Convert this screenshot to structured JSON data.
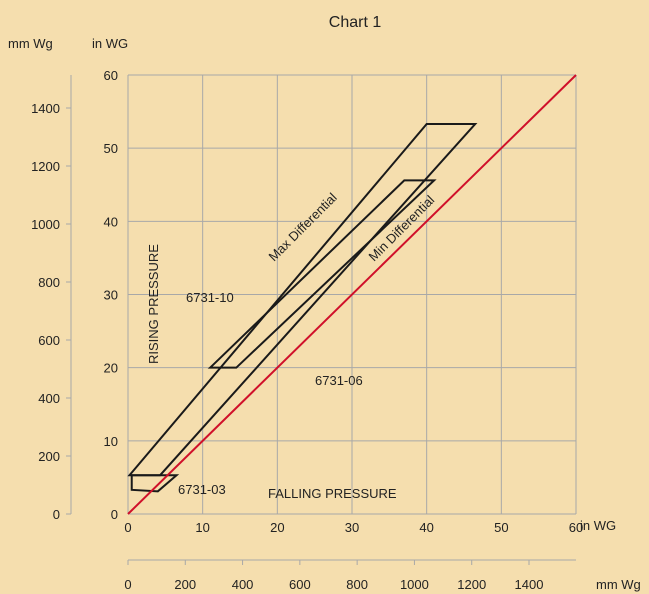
{
  "chart_data": {
    "type": "line",
    "title": "Chart 1",
    "x_axis": {
      "unit_primary": "in WG",
      "ticks_primary": [
        "0",
        "10",
        "20",
        "30",
        "40",
        "50",
        "60"
      ],
      "range": [
        0,
        60
      ],
      "unit_secondary": "mm Wg",
      "ticks_secondary": [
        "0",
        "200",
        "400",
        "600",
        "800",
        "1000",
        "1200",
        "1400"
      ]
    },
    "y_axis": {
      "unit_primary": "in WG",
      "ticks_primary": [
        "0",
        "10",
        "20",
        "30",
        "40",
        "50",
        "60"
      ],
      "range": [
        0,
        60
      ],
      "unit_secondary": "mm Wg",
      "ticks_secondary": [
        "0",
        "200",
        "400",
        "600",
        "800",
        "1000",
        "1200",
        "1400"
      ]
    },
    "grid": true,
    "colors": {
      "background": "#f5deae",
      "grid": "#a8a8a8",
      "outline": "#1a1a1a",
      "diagonal": "#d0102a"
    },
    "series": [
      {
        "name": "6731-03",
        "shape": "closed",
        "points": [
          [
            0.5,
            5.3
          ],
          [
            6.5,
            5.3
          ],
          [
            4.0,
            3.1
          ],
          [
            0.5,
            3.3
          ]
        ]
      },
      {
        "name": "6731-06",
        "shape": "closed",
        "points": [
          [
            11.0,
            20.0
          ],
          [
            37.0,
            45.6
          ],
          [
            41.0,
            45.6
          ],
          [
            14.5,
            20.0
          ]
        ]
      },
      {
        "name": "6731-10",
        "shape": "closed",
        "points": [
          [
            0.2,
            5.3
          ],
          [
            40.0,
            53.3
          ],
          [
            46.5,
            53.3
          ],
          [
            4.3,
            5.3
          ]
        ]
      },
      {
        "name": "",
        "shape": "line",
        "color": "#d0102a",
        "points": [
          [
            0,
            0
          ],
          [
            60,
            60
          ]
        ]
      }
    ],
    "annotations": [
      {
        "text": "Max Differential"
      },
      {
        "text": "Min Differential"
      },
      {
        "text": "RISING PRESSURE"
      },
      {
        "text": "FALLING PRESSURE"
      },
      {
        "text": "6731-10"
      },
      {
        "text": "6731-06"
      },
      {
        "text": "6731-03"
      }
    ]
  }
}
